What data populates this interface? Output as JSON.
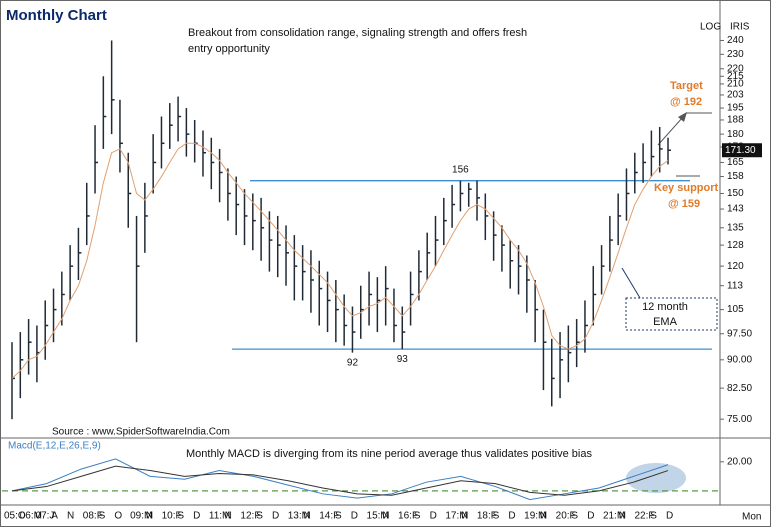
{
  "chart_data": [
    {
      "type": "ohlc",
      "title": "Monthly Chart",
      "log_scale": true,
      "color": "#1f2a36",
      "ema_color": "#e0a070",
      "level_color": "#3b8fd0",
      "high": [
        95,
        98,
        102,
        100,
        108,
        112,
        118,
        128,
        135,
        155,
        185,
        215,
        240,
        200,
        170,
        140,
        155,
        180,
        190,
        198,
        202,
        195,
        188,
        182,
        178,
        172,
        162,
        158,
        152,
        150,
        148,
        142,
        140,
        136,
        132,
        128,
        126,
        122,
        118,
        115,
        110,
        106,
        113,
        118,
        116,
        120,
        112,
        106,
        118,
        126,
        133,
        140,
        148,
        154,
        156,
        155,
        156,
        150,
        142,
        136,
        130,
        128,
        124,
        115,
        105,
        96,
        98,
        100,
        102,
        108,
        120,
        128,
        140,
        150,
        162,
        170,
        175,
        182,
        184,
        178
      ],
      "low": [
        75,
        80,
        86,
        84,
        90,
        95,
        100,
        108,
        115,
        128,
        150,
        172,
        180,
        160,
        135,
        95,
        125,
        150,
        162,
        172,
        176,
        168,
        165,
        158,
        152,
        146,
        138,
        132,
        128,
        126,
        122,
        118,
        116,
        113,
        108,
        108,
        104,
        100,
        98,
        95,
        94,
        92,
        96,
        100,
        98,
        100,
        95,
        93,
        100,
        108,
        115,
        120,
        128,
        135,
        142,
        144,
        138,
        130,
        122,
        118,
        112,
        110,
        104,
        95,
        82,
        78,
        80,
        84,
        88,
        92,
        100,
        110,
        118,
        128,
        138,
        150,
        155,
        158,
        160,
        164
      ],
      "close": [
        85,
        90,
        95,
        92,
        100,
        105,
        110,
        120,
        125,
        140,
        165,
        190,
        200,
        175,
        150,
        120,
        140,
        165,
        175,
        185,
        190,
        180,
        175,
        170,
        165,
        160,
        150,
        145,
        140,
        138,
        135,
        130,
        128,
        125,
        120,
        118,
        115,
        112,
        108,
        105,
        100,
        98,
        105,
        110,
        108,
        112,
        100,
        98,
        110,
        118,
        125,
        130,
        138,
        145,
        150,
        152,
        148,
        140,
        132,
        128,
        122,
        120,
        115,
        105,
        95,
        85,
        90,
        92,
        95,
        100,
        110,
        120,
        130,
        140,
        150,
        160,
        165,
        168,
        172,
        171.3
      ],
      "ema": [
        85,
        87,
        90,
        91,
        94,
        98,
        102,
        108,
        113,
        122,
        136,
        155,
        170,
        172,
        165,
        150,
        147,
        152,
        158,
        165,
        172,
        175,
        175,
        173,
        170,
        166,
        160,
        155,
        150,
        146,
        142,
        138,
        134,
        130,
        126,
        123,
        120,
        117,
        114,
        110,
        106,
        103,
        104,
        106,
        107,
        109,
        106,
        103,
        106,
        110,
        115,
        120,
        126,
        132,
        138,
        143,
        145,
        143,
        139,
        135,
        130,
        126,
        121,
        114,
        106,
        97,
        94,
        93,
        94,
        96,
        101,
        108,
        116,
        125,
        135,
        145,
        152,
        158,
        163,
        166
      ],
      "ylim": [
        71,
        254
      ],
      "yticks": [
        240,
        230,
        220,
        215,
        210,
        203,
        195,
        188,
        180,
        173,
        165,
        158,
        150,
        143,
        135,
        128,
        120,
        113,
        105,
        {
          "value": 97.5,
          "label": "97.50"
        },
        {
          "value": 90,
          "label": "90.00"
        },
        {
          "value": 82.5,
          "label": "82.50"
        },
        {
          "value": 75,
          "label": "75.00"
        }
      ],
      "x_labels": [
        "05:O",
        "06:M",
        "07:J",
        "A",
        "N",
        "08:F",
        "S",
        "O",
        "09:M",
        "N",
        "10:F",
        "S",
        "D",
        "11:M",
        "N",
        "12:F",
        "S",
        "D",
        "13:M",
        "N",
        "14:F",
        "S",
        "D",
        "15:M",
        "N",
        "16:F",
        "S",
        "D",
        "17:M",
        "N",
        "18:F",
        "S",
        "D",
        "19:M",
        "N",
        "20:F",
        "S",
        "D",
        "21:M",
        "N",
        "22:F",
        "S",
        "D"
      ],
      "annotations": {
        "breakout_1": "Breakout from consolidation range, signaling strength and offers fresh",
        "breakout_2": "entry opportunity",
        "log": "LOG",
        "symbol": "IRIS",
        "last_price_label": "171.30",
        "target": "Target",
        "target_level": "@  192",
        "key_support": "Key support",
        "key_support_level": "@  159",
        "ema_label_1": "12 month",
        "ema_label_2": "EMA",
        "source": "Source : www.SpiderSoftwareIndia.Com",
        "period": "Mon"
      }
    },
    {
      "type": "line",
      "title": "Macd(E,12,E,26,E,9)",
      "annotation": "Monthly MACD is diverging from its nine period average thus validates positive bias",
      "series": [
        {
          "color": "#3b7fc4",
          "values": [
            0,
            5,
            15,
            22,
            10,
            8,
            14,
            10,
            4,
            -2,
            -5,
            -2,
            6,
            10,
            3,
            -6,
            -2,
            2,
            10,
            18
          ]
        },
        {
          "color": "#333333",
          "values": [
            0,
            3,
            10,
            17,
            14,
            10,
            12,
            11,
            7,
            2,
            -2,
            -3,
            2,
            7,
            5,
            -1,
            -3,
            0,
            6,
            14
          ]
        }
      ],
      "ylim": [
        -9,
        35
      ],
      "yticks": [
        {
          "value": 20,
          "label": "20.00"
        }
      ],
      "zero_line_color": "#5a9a4a"
    }
  ]
}
